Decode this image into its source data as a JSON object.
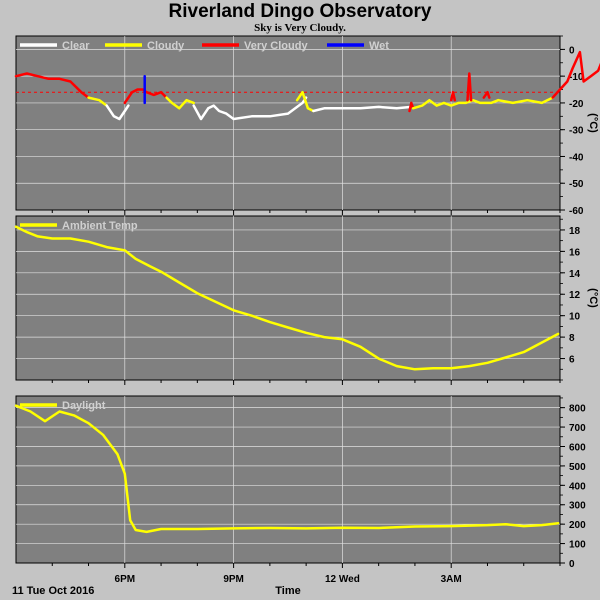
{
  "header": {
    "title": "Riverland Dingo Observatory",
    "subtitle": "Sky is Very Cloudy."
  },
  "footer": {
    "date_label": "11 Tue Oct 2016",
    "xlabel": "Time"
  },
  "colors": {
    "background": "#c4c4c4",
    "plot": "#808080",
    "grid": "#e0e0e0",
    "clear": "#ffffff",
    "cloudy": "#ffff00",
    "very_cloudy": "#ff0000",
    "wet": "#0000ff"
  },
  "chart_data": [
    {
      "type": "line",
      "panel": "sky",
      "ylabel": "(°C)",
      "ylim": [
        -60,
        5
      ],
      "yticks": [
        "0",
        "-10",
        "-20",
        "-30",
        "-40",
        "-50",
        "-60"
      ],
      "xticks": [
        "6PM",
        "9PM",
        "12 Wed",
        "3AM"
      ],
      "x_range_hours": [
        15.0,
        27.45
      ],
      "threshold": -16,
      "legend": [
        "Clear",
        "Cloudy",
        "Very Cloudy",
        "Wet"
      ],
      "series": [
        {
          "category": "very_cloudy",
          "points": [
            [
              15.0,
              -10
            ],
            [
              15.3,
              -9
            ],
            [
              15.6,
              -10
            ],
            [
              15.9,
              -11
            ],
            [
              16.2,
              -11
            ],
            [
              16.5,
              -12
            ],
            [
              16.8,
              -16
            ],
            [
              17.0,
              -18
            ]
          ]
        },
        {
          "category": "cloudy",
          "points": [
            [
              17.0,
              -18
            ],
            [
              17.3,
              -19
            ],
            [
              17.5,
              -21
            ]
          ]
        },
        {
          "category": "clear",
          "points": [
            [
              17.5,
              -21
            ],
            [
              17.7,
              -25
            ],
            [
              17.85,
              -26
            ],
            [
              18.0,
              -23
            ],
            [
              18.1,
              -21
            ]
          ]
        },
        {
          "category": "very_cloudy",
          "points": [
            [
              18.0,
              -20
            ],
            [
              18.2,
              -16
            ],
            [
              18.35,
              -15
            ],
            [
              18.5,
              -15
            ],
            [
              18.6,
              -16
            ],
            [
              18.8,
              -17
            ],
            [
              19.0,
              -16
            ],
            [
              19.15,
              -18
            ]
          ]
        },
        {
          "category": "wet",
          "points": [
            [
              18.55,
              -20
            ],
            [
              18.55,
              -10
            ]
          ]
        },
        {
          "category": "cloudy",
          "points": [
            [
              19.15,
              -18
            ],
            [
              19.3,
              -20
            ],
            [
              19.5,
              -22
            ],
            [
              19.7,
              -19
            ],
            [
              19.9,
              -20
            ]
          ]
        },
        {
          "category": "clear",
          "points": [
            [
              19.9,
              -21
            ],
            [
              20.1,
              -26
            ],
            [
              20.3,
              -22
            ],
            [
              20.45,
              -21
            ],
            [
              20.6,
              -23
            ],
            [
              20.8,
              -24
            ],
            [
              21.0,
              -26
            ],
            [
              21.5,
              -25
            ],
            [
              22.0,
              -25
            ],
            [
              22.5,
              -24
            ],
            [
              22.9,
              -20
            ],
            [
              23.0,
              -18
            ]
          ]
        },
        {
          "category": "cloudy",
          "points": [
            [
              22.75,
              -19
            ],
            [
              22.9,
              -16
            ],
            [
              23.05,
              -22
            ],
            [
              23.2,
              -23
            ]
          ]
        },
        {
          "category": "clear",
          "points": [
            [
              23.2,
              -23
            ],
            [
              23.5,
              -22
            ],
            [
              24.0,
              -22
            ],
            [
              24.5,
              -22
            ],
            [
              25.0,
              -21.5
            ],
            [
              25.5,
              -22
            ],
            [
              25.9,
              -21.5
            ]
          ]
        },
        {
          "category": "very_cloudy",
          "points": [
            [
              25.85,
              -23
            ],
            [
              25.9,
              -20
            ],
            [
              25.95,
              -22
            ]
          ]
        },
        {
          "category": "cloudy",
          "points": [
            [
              25.95,
              -22
            ],
            [
              26.2,
              -21
            ],
            [
              26.4,
              -19
            ],
            [
              26.6,
              -21
            ],
            [
              26.8,
              -20
            ],
            [
              27.0,
              -21
            ],
            [
              27.2,
              -20
            ],
            [
              27.4,
              -20
            ],
            [
              27.6,
              -19
            ],
            [
              27.8,
              -20
            ],
            [
              28.1,
              -20
            ],
            [
              28.3,
              -19
            ]
          ]
        },
        {
          "category": "very_cloudy",
          "points": [
            [
              27.0,
              -19
            ],
            [
              27.05,
              -16
            ],
            [
              27.1,
              -19
            ]
          ]
        },
        {
          "category": "very_cloudy",
          "points": [
            [
              27.45,
              -19
            ],
            [
              27.5,
              -9
            ],
            [
              27.55,
              -19
            ]
          ]
        },
        {
          "category": "very_cloudy",
          "points": [
            [
              27.9,
              -18
            ],
            [
              28.0,
              -16
            ],
            [
              28.05,
              -18
            ]
          ]
        },
        {
          "category": "cloudy",
          "points": [
            [
              28.3,
              -19
            ],
            [
              28.7,
              -20
            ],
            [
              29.1,
              -19
            ],
            [
              29.5,
              -20
            ],
            [
              29.8,
              -18
            ]
          ]
        },
        {
          "category": "very_cloudy",
          "points": [
            [
              29.8,
              -18
            ],
            [
              30.0,
              -15
            ],
            [
              30.2,
              -12
            ],
            [
              30.35,
              -7
            ],
            [
              30.45,
              -4
            ],
            [
              30.55,
              -1
            ],
            [
              30.65,
              -12
            ],
            [
              30.85,
              -10
            ],
            [
              31.05,
              -8
            ],
            [
              31.2,
              -3
            ],
            [
              31.4,
              -5
            ],
            [
              31.6,
              -1
            ],
            [
              31.8,
              -2
            ],
            [
              32.0,
              -4
            ],
            [
              32.2,
              -3
            ],
            [
              32.45,
              -4
            ]
          ]
        }
      ]
    },
    {
      "type": "line",
      "panel": "ambient",
      "ylabel": "(°C)",
      "ylim": [
        4,
        19.3
      ],
      "yticks": [
        "18",
        "16",
        "14",
        "12",
        "10",
        "8",
        "6"
      ],
      "xticks": [
        "6PM",
        "9PM",
        "12 Wed",
        "3AM"
      ],
      "legend": [
        "Ambient Temp"
      ],
      "series": [
        {
          "name": "Ambient Temp",
          "points": [
            [
              15.0,
              18.3
            ],
            [
              15.3,
              17.8
            ],
            [
              15.6,
              17.4
            ],
            [
              16.0,
              17.2
            ],
            [
              16.5,
              17.2
            ],
            [
              17.0,
              16.9
            ],
            [
              17.5,
              16.4
            ],
            [
              18.0,
              16.1
            ],
            [
              18.3,
              15.3
            ],
            [
              18.7,
              14.6
            ],
            [
              19.0,
              14.1
            ],
            [
              19.5,
              13.1
            ],
            [
              20.0,
              12.1
            ],
            [
              20.5,
              11.3
            ],
            [
              21.0,
              10.5
            ],
            [
              21.5,
              10.0
            ],
            [
              22.0,
              9.4
            ],
            [
              22.5,
              8.9
            ],
            [
              23.0,
              8.4
            ],
            [
              23.5,
              8.0
            ],
            [
              24.0,
              7.8
            ],
            [
              24.5,
              7.1
            ],
            [
              25.0,
              6.0
            ],
            [
              25.5,
              5.3
            ],
            [
              26.0,
              5.0
            ],
            [
              26.5,
              5.1
            ],
            [
              27.0,
              5.1
            ],
            [
              27.5,
              5.3
            ],
            [
              28.0,
              5.6
            ],
            [
              28.5,
              6.1
            ],
            [
              29.0,
              6.6
            ],
            [
              29.5,
              7.5
            ],
            [
              29.95,
              8.3
            ]
          ]
        }
      ]
    },
    {
      "type": "line",
      "panel": "daylight",
      "ylabel": "",
      "ylim": [
        0,
        860
      ],
      "yticks": [
        "800",
        "700",
        "600",
        "500",
        "400",
        "300",
        "200",
        "100",
        "0"
      ],
      "xticks": [
        "6PM",
        "9PM",
        "12 Wed",
        "3AM"
      ],
      "legend": [
        "Daylight"
      ],
      "series": [
        {
          "name": "Daylight",
          "points": [
            [
              15.0,
              810
            ],
            [
              15.4,
              780
            ],
            [
              15.8,
              730
            ],
            [
              16.2,
              780
            ],
            [
              16.6,
              760
            ],
            [
              17.0,
              720
            ],
            [
              17.4,
              660
            ],
            [
              17.8,
              560
            ],
            [
              18.0,
              460
            ],
            [
              18.15,
              220
            ],
            [
              18.3,
              170
            ],
            [
              18.6,
              160
            ],
            [
              19.0,
              175
            ],
            [
              20.0,
              175
            ],
            [
              21.0,
              178
            ],
            [
              22.0,
              180
            ],
            [
              23.0,
              178
            ],
            [
              24.0,
              182
            ],
            [
              25.0,
              180
            ],
            [
              26.0,
              188
            ],
            [
              27.0,
              190
            ],
            [
              28.0,
              195
            ],
            [
              28.5,
              200
            ],
            [
              29.0,
              190
            ],
            [
              29.5,
              195
            ],
            [
              29.95,
              205
            ]
          ]
        }
      ]
    }
  ]
}
